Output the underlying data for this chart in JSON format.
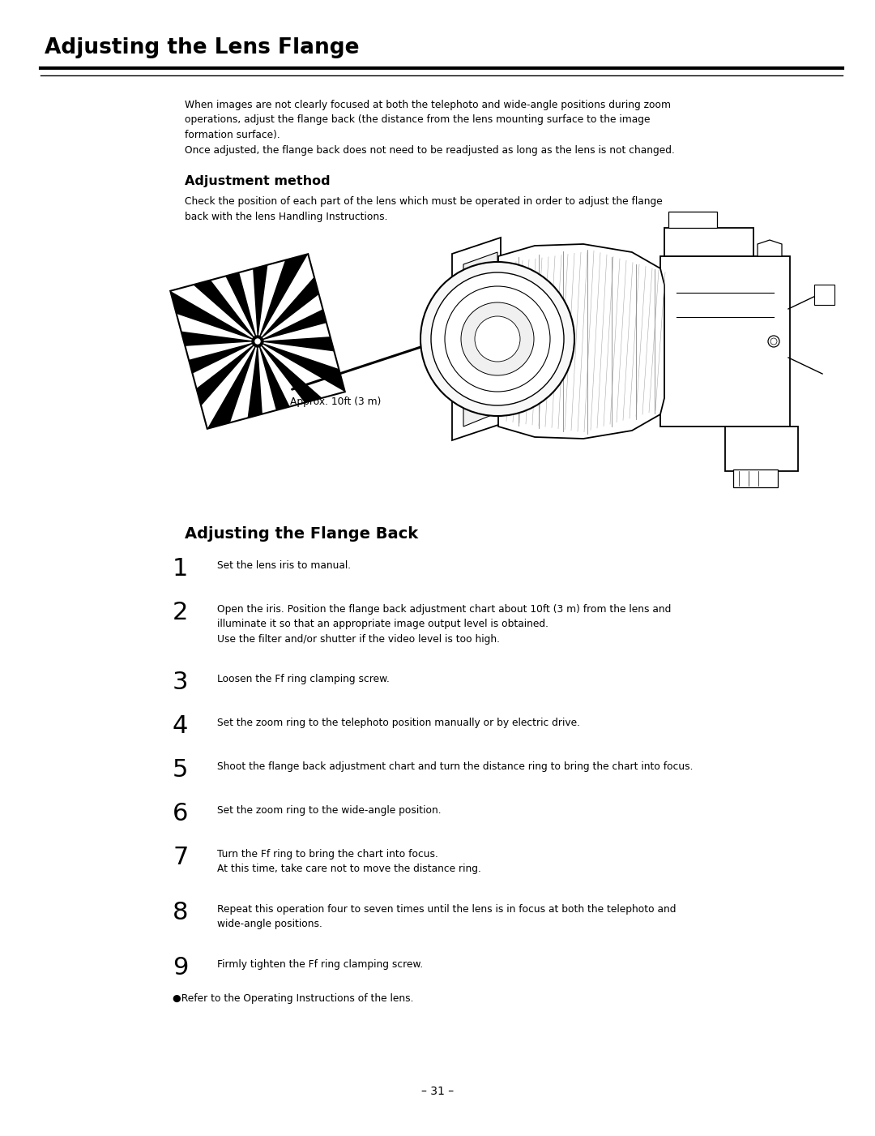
{
  "title": "Adjusting the Lens Flange",
  "bg_color": "#ffffff",
  "text_color": "#000000",
  "intro_text": "When images are not clearly focused at both the telephoto and wide-angle positions during zoom\noperations, adjust the flange back (the distance from the lens mounting surface to the image\nformation surface).\nOnce adjusted, the flange back does not need to be readjusted as long as the lens is not changed.",
  "section1_title": "Adjustment method",
  "section1_text": "Check the position of each part of the lens which must be operated in order to adjust the flange\nback with the lens Handling Instructions.",
  "approx_label": "Approx. 10ft (3 m)",
  "section2_title": "Adjusting the Flange Back",
  "steps": [
    {
      "num": "1",
      "text": "Set the lens iris to manual."
    },
    {
      "num": "2",
      "text": "Open the iris. Position the flange back adjustment chart about 10ft (3 m) from the lens and\nilluminate it so that an appropriate image output level is obtained.\nUse the filter and/or shutter if the video level is too high."
    },
    {
      "num": "3",
      "text": "Loosen the Ff ring clamping screw."
    },
    {
      "num": "4",
      "text": "Set the zoom ring to the telephoto position manually or by electric drive."
    },
    {
      "num": "5",
      "text": "Shoot the flange back adjustment chart and turn the distance ring to bring the chart into focus."
    },
    {
      "num": "6",
      "text": "Set the zoom ring to the wide-angle position."
    },
    {
      "num": "7",
      "text": "Turn the Ff ring to bring the chart into focus.\nAt this time, take care not to move the distance ring."
    },
    {
      "num": "8",
      "text": "Repeat this operation four to seven times until the lens is in focus at both the telephoto and\nwide-angle positions."
    },
    {
      "num": "9",
      "text": "Firmly tighten the Ff ring clamping screw."
    }
  ],
  "bullet_text": "●Refer to the Operating Instructions of the lens.",
  "page_number": "– 31 –"
}
